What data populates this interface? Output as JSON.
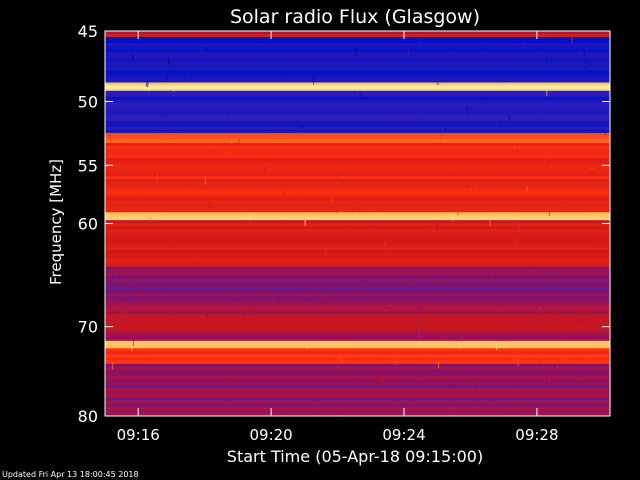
{
  "chart_data": {
    "type": "heatmap",
    "title": "Solar radio Flux (Glasgow)",
    "xlabel": "Start Time (05-Apr-18 09:15:00)",
    "ylabel": "Frequency [MHz]",
    "x_ticks": [
      {
        "value": 16,
        "label": "09:16"
      },
      {
        "value": 20,
        "label": "09:20"
      },
      {
        "value": 24,
        "label": "09:24"
      },
      {
        "value": 28,
        "label": "09:28"
      }
    ],
    "y_ticks": [
      {
        "value": 45,
        "label": "45"
      },
      {
        "value": 50,
        "label": "50"
      },
      {
        "value": 55,
        "label": "55"
      },
      {
        "value": 60,
        "label": "60"
      },
      {
        "value": 70,
        "label": "70"
      },
      {
        "value": 80,
        "label": "80"
      }
    ],
    "xlim": [
      15,
      30.2
    ],
    "ylim": [
      45,
      80
    ],
    "y_scale": "log",
    "colormap": [
      "#000033",
      "#0010c8",
      "#4020b0",
      "#901060",
      "#d01818",
      "#ff3010",
      "#ffb040",
      "#ffffc0"
    ],
    "intensity_bands": [
      {
        "freq_range": [
          45.0,
          45.4
        ],
        "level": 0.55
      },
      {
        "freq_range": [
          45.4,
          48.6
        ],
        "level": 0.18
      },
      {
        "freq_range": [
          48.6,
          49.2
        ],
        "level": 0.95
      },
      {
        "freq_range": [
          49.2,
          52.4
        ],
        "level": 0.2
      },
      {
        "freq_range": [
          52.4,
          53.2
        ],
        "level": 0.78
      },
      {
        "freq_range": [
          53.2,
          59.0
        ],
        "level": 0.66
      },
      {
        "freq_range": [
          59.0,
          59.7
        ],
        "level": 0.9
      },
      {
        "freq_range": [
          59.7,
          63.0
        ],
        "level": 0.58
      },
      {
        "freq_range": [
          63.0,
          64.0
        ],
        "level": 0.62
      },
      {
        "freq_range": [
          64.0,
          67.5
        ],
        "level": 0.42
      },
      {
        "freq_range": [
          67.5,
          71.5
        ],
        "level": 0.5
      },
      {
        "freq_range": [
          71.5,
          72.3
        ],
        "level": 0.95
      },
      {
        "freq_range": [
          72.3,
          74.0
        ],
        "level": 0.7
      },
      {
        "freq_range": [
          74.0,
          80.0
        ],
        "level": 0.44
      }
    ]
  },
  "footer": {
    "updated": "Updated Fri Apr 13 18:00:45 2018"
  }
}
